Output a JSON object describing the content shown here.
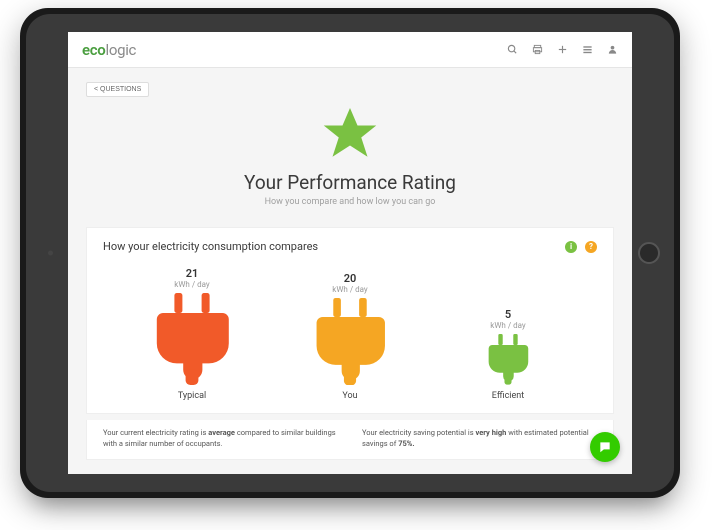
{
  "brand": {
    "eco": "eco",
    "logic": "logic",
    "eco_color": "#4a9e3f",
    "logic_color": "#8a8a8a"
  },
  "header_icons": [
    "search",
    "print",
    "add",
    "menu",
    "account"
  ],
  "questions_btn": "< QUESTIONS",
  "hero": {
    "title": "Your Performance Rating",
    "subtitle": "How you compare and how low you can go",
    "star_color": "#7ac142",
    "star_size": 64
  },
  "card": {
    "title": "How your electricity consumption compares",
    "info_icons": [
      {
        "name": "info-icon",
        "glyph": "i",
        "color": "#7ac142"
      },
      {
        "name": "help-icon",
        "glyph": "?",
        "color": "#f5a623"
      }
    ],
    "unit": "kWh / day",
    "plugs": [
      {
        "label": "Typical",
        "value": "21",
        "color": "#f15a29",
        "scale": 1.0
      },
      {
        "label": "You",
        "value": "20",
        "color": "#f5a623",
        "scale": 0.95
      },
      {
        "label": "Efficient",
        "value": "5",
        "color": "#7ac142",
        "scale": 0.55
      }
    ]
  },
  "summary": {
    "left": {
      "pre": "Your current electricity rating is ",
      "bold": "average",
      "post": " compared to similar buildings with a similar number of occupants."
    },
    "right": {
      "pre": "Your electricity saving potential is ",
      "bold": "very high",
      "post": " with estimated potential savings of ",
      "bold2": "75%."
    }
  },
  "fab": {
    "color": "#33cc00",
    "icon_color": "#ffffff"
  },
  "colors": {
    "screen_bg": "#f5f5f5",
    "card_bg": "#ffffff",
    "border": "#eeeeee",
    "text_primary": "#3a3a3a",
    "text_muted": "#a0a0a0"
  }
}
